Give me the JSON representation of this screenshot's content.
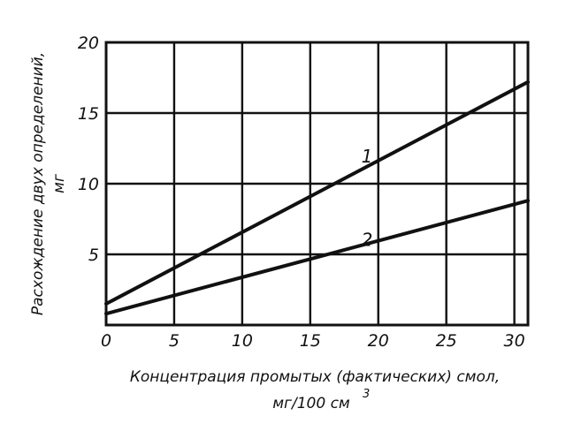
{
  "chart_data": {
    "type": "line",
    "xlabel": "Концентрация промытых (фактических) смол,",
    "xlabel_unit": "мг/100 см",
    "xlabel_unit_superscript": "3",
    "ylabel": "Расхождение двух определений,",
    "ylabel_unit": "мг",
    "xlim": [
      0,
      31
    ],
    "ylim": [
      0,
      20
    ],
    "x_ticks": [
      {
        "value": 0,
        "label": "0"
      },
      {
        "value": 5,
        "label": "5"
      },
      {
        "value": 10,
        "label": "10"
      },
      {
        "value": 15,
        "label": "15"
      },
      {
        "value": 20,
        "label": "20"
      },
      {
        "value": 25,
        "label": "25"
      },
      {
        "value": 30,
        "label": "30"
      }
    ],
    "y_ticks": [
      {
        "value": 0,
        "label": "0"
      },
      {
        "value": 5,
        "label": "5"
      },
      {
        "value": 10,
        "label": "10"
      },
      {
        "value": 15,
        "label": "15"
      },
      {
        "value": 20,
        "label": "20"
      }
    ],
    "grid": true,
    "series": [
      {
        "name": "1",
        "x": [
          0,
          31
        ],
        "y": [
          1.5,
          17.2
        ]
      },
      {
        "name": "2",
        "x": [
          0,
          31
        ],
        "y": [
          0.8,
          8.8
        ]
      }
    ],
    "series_label_positions": [
      {
        "name": "1",
        "x": 18.0,
        "y": 11.5
      },
      {
        "name": "2",
        "x": 18.0,
        "y": 5.6
      }
    ]
  }
}
